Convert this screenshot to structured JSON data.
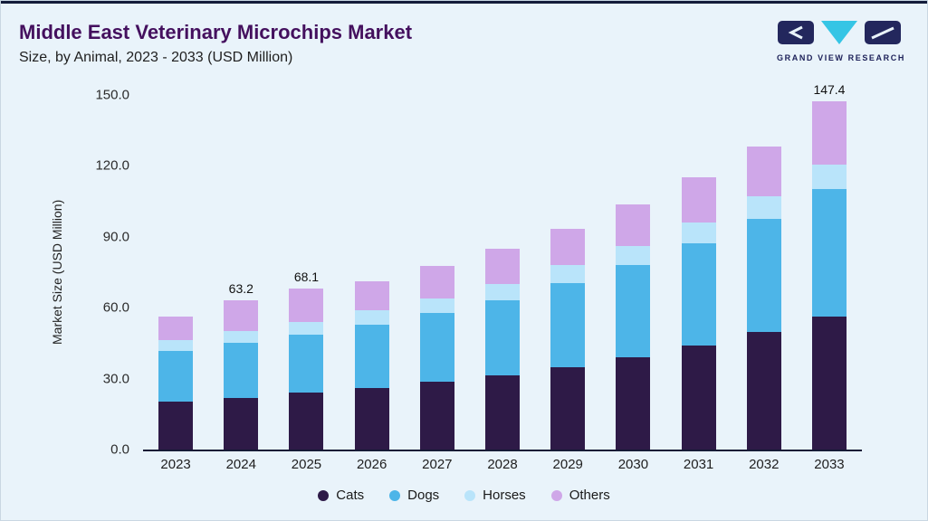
{
  "header": {
    "title": "Middle East Veterinary Microchips Market",
    "subtitle": "Size, by Animal, 2023 - 2033 (USD Million)",
    "logo_text": "GRAND VIEW RESEARCH"
  },
  "chart_data": {
    "type": "bar",
    "stacked": true,
    "title": "Middle East Veterinary Microchips Market",
    "subtitle": "Size, by Animal, 2023 - 2033 (USD Million)",
    "xlabel": "",
    "ylabel": "Market Size (USD Million)",
    "ylim": [
      0,
      150
    ],
    "yticks": [
      "150.0",
      "120.0",
      "90.0",
      "60.0",
      "30.0",
      "0.0"
    ],
    "grid": false,
    "legend_position": "bottom",
    "categories": [
      "2023",
      "2024",
      "2025",
      "2026",
      "2027",
      "2028",
      "2029",
      "2030",
      "2031",
      "2032",
      "2033"
    ],
    "series": [
      {
        "name": "Cats",
        "color": "#2e1a47",
        "values": [
          20.3,
          22.0,
          24.0,
          26.2,
          28.8,
          31.5,
          35.0,
          39.2,
          44.0,
          49.8,
          56.2
        ]
      },
      {
        "name": "Dogs",
        "color": "#4db5e8",
        "values": [
          21.5,
          23.0,
          24.8,
          26.8,
          29.0,
          31.8,
          35.5,
          39.0,
          43.2,
          47.8,
          54.0
        ]
      },
      {
        "name": "Horses",
        "color": "#b9e4fa",
        "values": [
          4.6,
          5.0,
          5.3,
          5.8,
          6.2,
          6.8,
          7.4,
          8.0,
          8.8,
          9.6,
          10.4
        ]
      },
      {
        "name": "Others",
        "color": "#cfa7e8",
        "values": [
          9.8,
          13.2,
          14.0,
          12.2,
          13.5,
          15.0,
          15.3,
          17.5,
          19.2,
          21.0,
          26.8
        ]
      }
    ],
    "total_labels": {
      "2024": "63.2",
      "2025": "68.1",
      "2033": "147.4"
    },
    "colors": {
      "background": "#e9f3fa",
      "title": "#44105e",
      "axis_line": "#161a36",
      "top_border": "#131c3a",
      "logo_navy": "#23275d",
      "logo_cyan": "#35c5e5"
    }
  }
}
